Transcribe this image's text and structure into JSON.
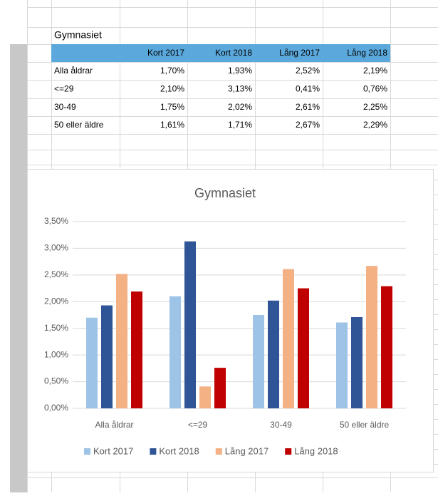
{
  "table": {
    "title": "Gymnasiet",
    "header": [
      "Kort 2017",
      "Kort 2018",
      "Lång 2017",
      "Lång 2018"
    ],
    "rows": [
      {
        "label": "Alla åldrar",
        "cells": [
          "1,70%",
          "1,93%",
          "2,52%",
          "2,19%"
        ]
      },
      {
        "label": "<=29",
        "cells": [
          "2,10%",
          "3,13%",
          "0,41%",
          "0,76%"
        ]
      },
      {
        "label": "30-49",
        "cells": [
          "1,75%",
          "2,02%",
          "2,61%",
          "2,25%"
        ]
      },
      {
        "label": "50 eller äldre",
        "cells": [
          "1,61%",
          "1,71%",
          "2,67%",
          "2,29%"
        ]
      }
    ]
  },
  "chart_data": {
    "type": "bar",
    "title": "Gymnasiet",
    "categories": [
      "Alla åldrar",
      "<=29",
      "30-49",
      "50 eller äldre"
    ],
    "series": [
      {
        "name": "Kort 2017",
        "color": "#9dc3e6",
        "values": [
          1.7,
          2.1,
          1.75,
          1.61
        ]
      },
      {
        "name": "Kort 2018",
        "color": "#2f5597",
        "values": [
          1.93,
          3.13,
          2.02,
          1.71
        ]
      },
      {
        "name": "Lång 2017",
        "color": "#f4b183",
        "values": [
          2.52,
          0.41,
          2.61,
          2.67
        ]
      },
      {
        "name": "Lång 2018",
        "color": "#c00000",
        "values": [
          2.19,
          0.76,
          2.25,
          2.29
        ]
      }
    ],
    "ylim": [
      0,
      3.5
    ],
    "yticks": [
      {
        "value": 0,
        "label": "0,00%"
      },
      {
        "value": 0.5,
        "label": "0,50%"
      },
      {
        "value": 1,
        "label": "1,00%"
      },
      {
        "value": 1.5,
        "label": "1,50%"
      },
      {
        "value": 2,
        "label": "2,00%"
      },
      {
        "value": 2.5,
        "label": "2,50%"
      },
      {
        "value": 3,
        "label": "3,00%"
      },
      {
        "value": 3.5,
        "label": "3,50%"
      }
    ],
    "grid": true,
    "legend": "bottom"
  }
}
